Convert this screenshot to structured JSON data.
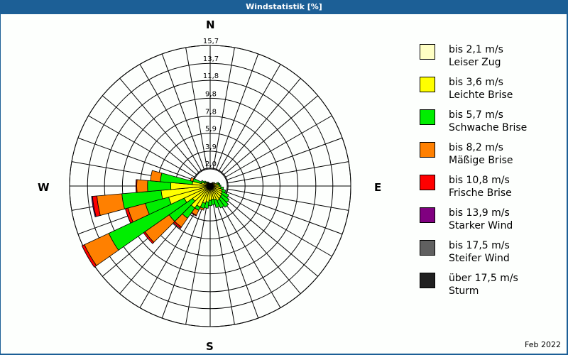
{
  "title": "Windstatistik [%]",
  "date_label": "Feb 2022",
  "compass": {
    "n": "N",
    "e": "E",
    "s": "S",
    "w": "W"
  },
  "legend": [
    {
      "line1": "bis 2,1 m/s",
      "line2": "Leiser Zug",
      "color": "#ffffc4"
    },
    {
      "line1": "bis 3,6 m/s",
      "line2": "Leichte Brise",
      "color": "#ffff00"
    },
    {
      "line1": "bis 5,7 m/s",
      "line2": "Schwache Brise",
      "color": "#00ee00"
    },
    {
      "line1": "bis 8,2 m/s",
      "line2": "Mäßige Brise",
      "color": "#ff8000"
    },
    {
      "line1": "bis 10,8 m/s",
      "line2": "Frische Brise",
      "color": "#ff0000"
    },
    {
      "line1": "bis 13,9 m/s",
      "line2": "Starker Wind",
      "color": "#800080"
    },
    {
      "line1": "bis 17,5 m/s",
      "line2": "Steifer Wind",
      "color": "#606060"
    },
    {
      "line1": "über 17,5 m/s",
      "line2": "Sturm",
      "color": "#202020"
    }
  ],
  "chart_data": {
    "type": "windrose",
    "title": "Windstatistik [%]",
    "subtitle": "Feb 2022",
    "radial_unit": "%",
    "ring_labels": [
      "2,0",
      "3,9",
      "5,9",
      "7,8",
      "9,8",
      "11,8",
      "13,7",
      "15,7"
    ],
    "ring_values": [
      2.0,
      3.9,
      5.9,
      7.8,
      9.8,
      11.8,
      13.7,
      15.7
    ],
    "rmax": 15.7,
    "sector_width_deg": 10,
    "speed_classes": [
      "bis 2,1 m/s",
      "bis 3,6 m/s",
      "bis 5,7 m/s",
      "bis 8,2 m/s",
      "bis 10,8 m/s",
      "bis 13,9 m/s",
      "bis 17,5 m/s",
      "über 17,5 m/s"
    ],
    "note": "Values are cumulative % per direction per speed class (estimated from pixels).",
    "sectors": [
      {
        "dir": 0,
        "cum": [
          0.1,
          0.3
        ]
      },
      {
        "dir": 10,
        "cum": [
          0.1,
          0.3
        ]
      },
      {
        "dir": 20,
        "cum": [
          0.1,
          0.3
        ]
      },
      {
        "dir": 30,
        "cum": [
          0.1,
          0.4
        ]
      },
      {
        "dir": 40,
        "cum": [
          0.2,
          0.5
        ]
      },
      {
        "dir": 50,
        "cum": [
          0.2,
          0.6
        ]
      },
      {
        "dir": 60,
        "cum": [
          0.2,
          0.6
        ]
      },
      {
        "dir": 70,
        "cum": [
          0.2,
          0.8,
          1.0
        ]
      },
      {
        "dir": 80,
        "cum": [
          0.2,
          0.9,
          1.1
        ]
      },
      {
        "dir": 90,
        "cum": [
          0.2,
          1.0,
          1.2
        ]
      },
      {
        "dir": 100,
        "cum": [
          0.2,
          1.2,
          1.5
        ]
      },
      {
        "dir": 110,
        "cum": [
          0.2,
          1.4,
          1.8
        ]
      },
      {
        "dir": 120,
        "cum": [
          0.3,
          1.5,
          2.3
        ]
      },
      {
        "dir": 130,
        "cum": [
          0.3,
          1.6,
          2.6
        ]
      },
      {
        "dir": 140,
        "cum": [
          0.3,
          1.7,
          2.9
        ]
      },
      {
        "dir": 150,
        "cum": [
          0.3,
          1.8,
          2.7
        ]
      },
      {
        "dir": 160,
        "cum": [
          0.3,
          1.6,
          2.5
        ]
      },
      {
        "dir": 170,
        "cum": [
          0.3,
          1.5,
          2.1
        ]
      },
      {
        "dir": 180,
        "cum": [
          0.3,
          1.6,
          2.2
        ]
      },
      {
        "dir": 190,
        "cum": [
          0.3,
          1.8,
          2.5
        ]
      },
      {
        "dir": 200,
        "cum": [
          0.3,
          2.0,
          2.6,
          2.8
        ]
      },
      {
        "dir": 210,
        "cum": [
          0.3,
          2.6,
          3.0,
          3.6,
          3.7
        ]
      },
      {
        "dir": 220,
        "cum": [
          0.3,
          3.0,
          4.4,
          5.6,
          5.8
        ]
      },
      {
        "dir": 230,
        "cum": [
          0.3,
          2.4,
          5.6,
          8.9,
          9.1
        ]
      },
      {
        "dir": 240,
        "cum": [
          0.3,
          3.2,
          12.5,
          15.5,
          15.8
        ]
      },
      {
        "dir": 250,
        "cum": [
          0.3,
          4.8,
          7.5,
          9.5,
          9.8
        ]
      },
      {
        "dir": 260,
        "cum": [
          0.4,
          5.5,
          9.9,
          12.7,
          13.2,
          13.3
        ]
      },
      {
        "dir": 270,
        "cum": [
          0.3,
          4.4,
          7.0,
          8.2,
          8.3
        ]
      },
      {
        "dir": 280,
        "cum": [
          0.3,
          2.0,
          5.6,
          6.7
        ]
      },
      {
        "dir": 290,
        "cum": [
          0.2,
          1.0,
          2.0,
          2.3
        ]
      },
      {
        "dir": 300,
        "cum": [
          0.2,
          0.7,
          1.1
        ]
      },
      {
        "dir": 310,
        "cum": [
          0.2,
          0.6,
          0.8
        ]
      },
      {
        "dir": 320,
        "cum": [
          0.1,
          0.4,
          0.6
        ]
      },
      {
        "dir": 330,
        "cum": [
          0.1,
          0.3,
          0.5
        ]
      },
      {
        "dir": 340,
        "cum": [
          0.1,
          0.3,
          0.4
        ]
      },
      {
        "dir": 350,
        "cum": [
          0.1,
          0.3
        ]
      }
    ]
  }
}
